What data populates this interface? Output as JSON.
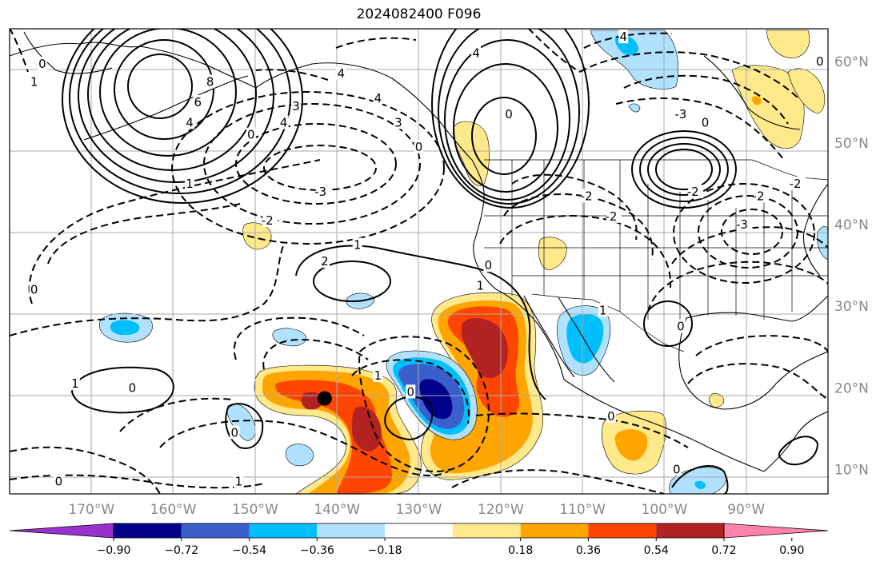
{
  "title": "2024082400 F096",
  "map": {
    "projection": "cylindrical",
    "lon_range": [
      -180,
      -80
    ],
    "lat_range": [
      7,
      64
    ],
    "lat_ticks": [
      {
        "value": 10,
        "label": "10°N"
      },
      {
        "value": 20,
        "label": "20°N"
      },
      {
        "value": 30,
        "label": "30°N"
      },
      {
        "value": 40,
        "label": "40°N"
      },
      {
        "value": 50,
        "label": "50°N"
      },
      {
        "value": 60,
        "label": "60°N"
      }
    ],
    "lon_ticks": [
      {
        "value": -170,
        "label": "170°W"
      },
      {
        "value": -160,
        "label": "160°W"
      },
      {
        "value": -150,
        "label": "150°W"
      },
      {
        "value": -140,
        "label": "140°W"
      },
      {
        "value": -130,
        "label": "130°W"
      },
      {
        "value": -120,
        "label": "120°W"
      },
      {
        "value": -110,
        "label": "110°W"
      },
      {
        "value": -100,
        "label": "100°W"
      },
      {
        "value": -90,
        "label": "90°W"
      }
    ],
    "grid": true,
    "marker": {
      "name": "storm-center",
      "lon": -141.5,
      "lat": 18.7,
      "color": "#000000"
    },
    "contour_labels": [
      {
        "lon": -176,
        "lat": 59.7,
        "text": "0"
      },
      {
        "lon": -177,
        "lat": 57.5,
        "text": "1"
      },
      {
        "lon": -150.5,
        "lat": 51,
        "text": "0"
      },
      {
        "lon": -146.5,
        "lat": 52.5,
        "text": "4"
      },
      {
        "lon": -145,
        "lat": 54.5,
        "text": "3"
      },
      {
        "lon": -157,
        "lat": 55,
        "text": "6"
      },
      {
        "lon": -158,
        "lat": 52.5,
        "text": "4"
      },
      {
        "lon": -155.5,
        "lat": 57.5,
        "text": "8"
      },
      {
        "lon": -158,
        "lat": 45,
        "text": "1"
      },
      {
        "lon": -177,
        "lat": 32,
        "text": "0"
      },
      {
        "lon": -142,
        "lat": 44,
        "text": "-3"
      },
      {
        "lon": -148.5,
        "lat": 40.5,
        "text": "-2"
      },
      {
        "lon": -139.5,
        "lat": 58.5,
        "text": "4"
      },
      {
        "lon": -135,
        "lat": 55.5,
        "text": "4"
      },
      {
        "lon": -132.5,
        "lat": 52.5,
        "text": "3"
      },
      {
        "lon": -130,
        "lat": 49.5,
        "text": "0"
      },
      {
        "lon": -123,
        "lat": 61,
        "text": "4"
      },
      {
        "lon": -119,
        "lat": 53.5,
        "text": "0"
      },
      {
        "lon": -109.5,
        "lat": 43.5,
        "text": "-2"
      },
      {
        "lon": -106.5,
        "lat": 41,
        "text": "-2"
      },
      {
        "lon": -105,
        "lat": 63,
        "text": "4"
      },
      {
        "lon": -98,
        "lat": 53.5,
        "text": "-3"
      },
      {
        "lon": -95,
        "lat": 52.5,
        "text": "0"
      },
      {
        "lon": -96.5,
        "lat": 44,
        "text": "-2"
      },
      {
        "lon": -90.5,
        "lat": 40,
        "text": "-3"
      },
      {
        "lon": -88.5,
        "lat": 43.5,
        "text": "-2"
      },
      {
        "lon": -84,
        "lat": 45,
        "text": "-2"
      },
      {
        "lon": -81,
        "lat": 60,
        "text": "0"
      },
      {
        "lon": -137.5,
        "lat": 37.5,
        "text": "1"
      },
      {
        "lon": -141.5,
        "lat": 35.5,
        "text": "2"
      },
      {
        "lon": -121.5,
        "lat": 35,
        "text": "0"
      },
      {
        "lon": -122.5,
        "lat": 32.5,
        "text": "1"
      },
      {
        "lon": -107.5,
        "lat": 29.5,
        "text": "1"
      },
      {
        "lon": -98,
        "lat": 27.5,
        "text": "0"
      },
      {
        "lon": -172,
        "lat": 20.5,
        "text": "1"
      },
      {
        "lon": -165,
        "lat": 20,
        "text": "0"
      },
      {
        "lon": -152.5,
        "lat": 14.5,
        "text": "0"
      },
      {
        "lon": -152,
        "lat": 8.5,
        "text": "1"
      },
      {
        "lon": -174,
        "lat": 8.5,
        "text": "0"
      },
      {
        "lon": -135,
        "lat": 21.5,
        "text": "1"
      },
      {
        "lon": -131,
        "lat": 19.5,
        "text": "0"
      },
      {
        "lon": -106.5,
        "lat": 16.5,
        "text": "0"
      },
      {
        "lon": -98.5,
        "lat": 10,
        "text": "0"
      }
    ]
  },
  "colorbar": {
    "ticks": [
      "−0.90",
      "−0.72",
      "−0.54",
      "−0.36",
      "−0.18",
      "0.18",
      "0.36",
      "0.54",
      "0.72",
      "0.90"
    ],
    "colors": [
      "#9932cc",
      "#00008b",
      "#3a5fcd",
      "#00bfff",
      "#b0e2ff",
      "#ffffff",
      "#ffe98a",
      "#ffa500",
      "#ff4500",
      "#b22222",
      "#ff82ab"
    ]
  }
}
